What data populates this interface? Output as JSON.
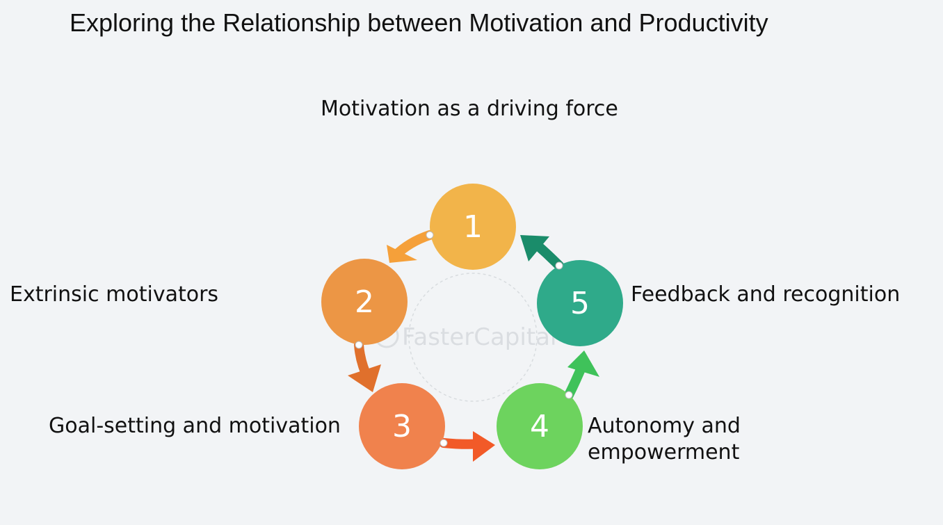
{
  "title": "Exploring the Relationship between Motivation and Productivity",
  "heading": "Motivation as a driving force",
  "steps": [
    {
      "number": "1",
      "color": "#f2b44a"
    },
    {
      "number": "2",
      "color": "#ec9645"
    },
    {
      "number": "3",
      "color": "#f0824d"
    },
    {
      "number": "4",
      "color": "#6dd35e"
    },
    {
      "number": "5",
      "color": "#2faa8a"
    }
  ],
  "labels": {
    "step2": "Extrinsic motivators",
    "step3": "Goal-setting and motivation",
    "step4_line1": "Autonomy and",
    "step4_line2": "empowerment",
    "step5": "Feedback and recognition"
  },
  "arrow_colors": [
    "#f5a03a",
    "#e0702c",
    "#f25a28",
    "#3fc25a",
    "#1a8c6a"
  ],
  "watermark": "FasterCapital"
}
